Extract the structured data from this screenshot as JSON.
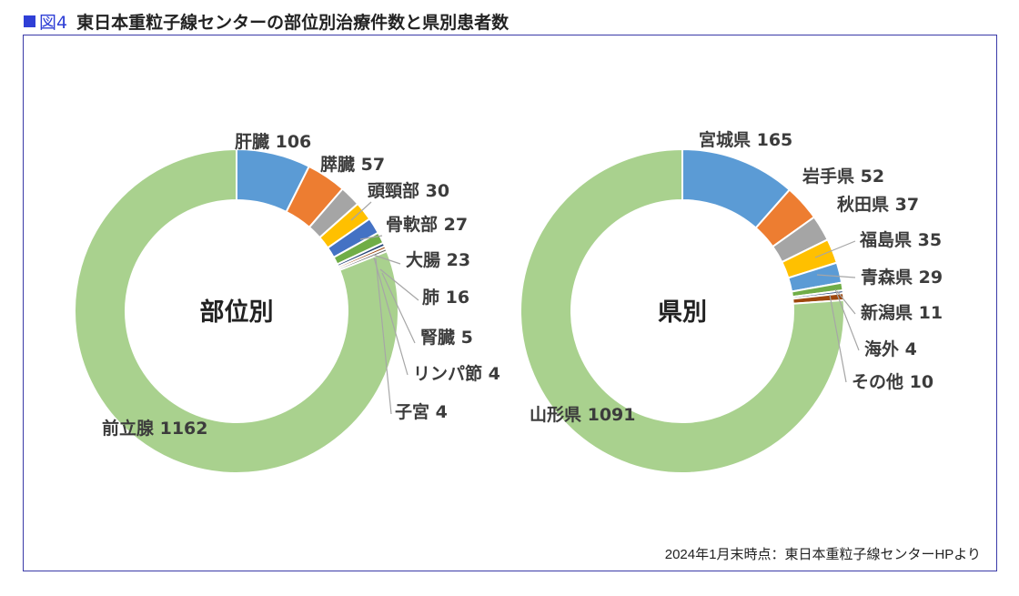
{
  "header": {
    "fig_number": "図4",
    "title": "東日本重粒子線センターの部位別治療件数と県別患者数"
  },
  "source_note": "2024年1月末時点：東日本重粒子線センターHPより",
  "colors": {
    "blue": "#5b9bd5",
    "orange": "#ed7d31",
    "gray": "#a5a5a5",
    "yellow": "#ffc000",
    "darkblue": "#4472c4",
    "green": "#70ad47",
    "navy": "#264478",
    "brown": "#9e480e",
    "lightgreen": "#a9d18e",
    "frame": "#3a3aa8",
    "fig_square": "#2f3fd6"
  },
  "chart_data": [
    {
      "type": "pie",
      "title": "部位別",
      "slices": [
        {
          "name": "肝臓",
          "value": 106,
          "color": "#5b9bd5",
          "label": "肝臓 106"
        },
        {
          "name": "膵臓",
          "value": 57,
          "color": "#ed7d31",
          "label": "膵臓 57"
        },
        {
          "name": "頭頸部",
          "value": 30,
          "color": "#a5a5a5",
          "label": "頭頸部 30"
        },
        {
          "name": "骨軟部",
          "value": 27,
          "color": "#ffc000",
          "label": "骨軟部 27"
        },
        {
          "name": "大腸",
          "value": 23,
          "color": "#4472c4",
          "label": "大腸 23"
        },
        {
          "name": "肺",
          "value": 16,
          "color": "#70ad47",
          "label": "肺 16"
        },
        {
          "name": "腎臓",
          "value": 5,
          "color": "#264478",
          "label": "腎臓 5"
        },
        {
          "name": "リンパ節",
          "value": 4,
          "color": "#9e480e",
          "label": "リンパ節 4"
        },
        {
          "name": "子宮",
          "value": 4,
          "color": "#636363",
          "label": "子宮 4"
        },
        {
          "name": "前立腺",
          "value": 1162,
          "color": "#a9d18e",
          "label": "前立腺 1162"
        }
      ]
    },
    {
      "type": "pie",
      "title": "県別",
      "slices": [
        {
          "name": "宮城県",
          "value": 165,
          "color": "#5b9bd5",
          "label": "宮城県 165"
        },
        {
          "name": "岩手県",
          "value": 52,
          "color": "#ed7d31",
          "label": "岩手県 52"
        },
        {
          "name": "秋田県",
          "value": 37,
          "color": "#a5a5a5",
          "label": "秋田県 37"
        },
        {
          "name": "福島県",
          "value": 35,
          "color": "#ffc000",
          "label": "福島県 35"
        },
        {
          "name": "青森県",
          "value": 29,
          "color": "#5b9bd5",
          "label": "青森県 29"
        },
        {
          "name": "新潟県",
          "value": 11,
          "color": "#70ad47",
          "label": "新潟県 11"
        },
        {
          "name": "海外",
          "value": 4,
          "color": "#264478",
          "label": "海外 4"
        },
        {
          "name": "その他",
          "value": 10,
          "color": "#9e480e",
          "label": "その他 10"
        },
        {
          "name": "山形県",
          "value": 1091,
          "color": "#a9d18e",
          "label": "山形県 1091"
        }
      ]
    }
  ]
}
